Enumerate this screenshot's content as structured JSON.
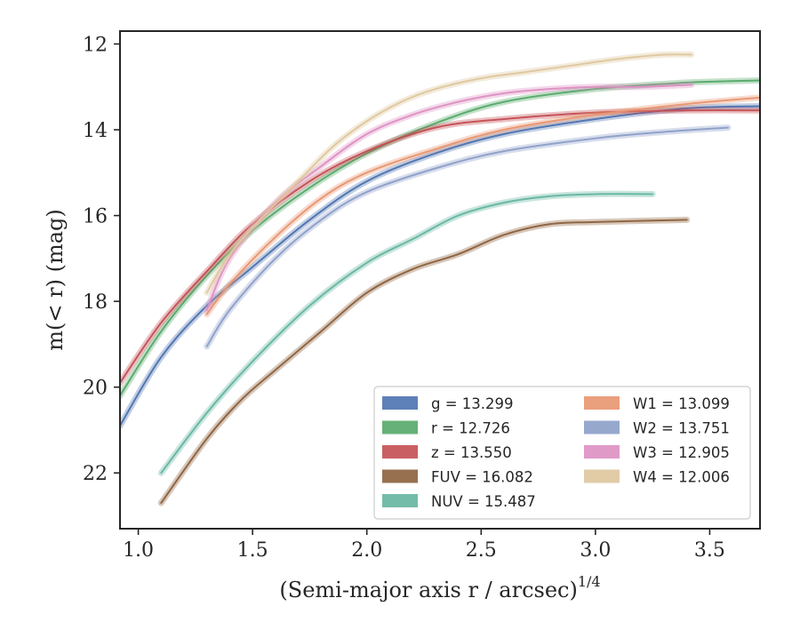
{
  "chart_data": {
    "type": "line",
    "xlabel": "(Semi-major axis r / arcsec)",
    "xlabel_exponent": "1/4",
    "ylabel": "m(< r) (mag)",
    "xlim": [
      0.92,
      3.72
    ],
    "ylim": [
      23.3,
      11.7
    ],
    "y_inverted": true,
    "x_ticks": [
      1.0,
      1.5,
      2.0,
      2.5,
      3.0,
      3.5
    ],
    "x_tick_labels": [
      "1.0",
      "1.5",
      "2.0",
      "2.5",
      "3.0",
      "3.5"
    ],
    "y_ticks": [
      12,
      14,
      16,
      18,
      20,
      22
    ],
    "y_tick_labels": [
      "12",
      "14",
      "16",
      "18",
      "20",
      "22"
    ],
    "grid": false,
    "legend_position": "lower-right",
    "series": [
      {
        "name": "g",
        "legend": "g = 13.299",
        "color": "#4c72b0",
        "x": [
          0.92,
          1.1,
          1.3,
          1.5,
          1.75,
          2.0,
          2.3,
          2.6,
          3.0,
          3.4,
          3.72
        ],
        "y": [
          20.9,
          19.3,
          18.1,
          17.2,
          16.1,
          15.2,
          14.55,
          14.1,
          13.75,
          13.5,
          13.45
        ]
      },
      {
        "name": "r",
        "legend": "r = 12.726",
        "color": "#55a868",
        "x": [
          0.92,
          1.1,
          1.3,
          1.5,
          1.75,
          2.0,
          2.3,
          2.6,
          3.0,
          3.4,
          3.72
        ],
        "y": [
          20.2,
          18.7,
          17.4,
          16.35,
          15.35,
          14.55,
          13.85,
          13.35,
          13.05,
          12.9,
          12.85
        ]
      },
      {
        "name": "z",
        "legend": "z = 13.550",
        "color": "#c44e52",
        "x": [
          0.92,
          1.1,
          1.3,
          1.5,
          1.75,
          2.0,
          2.3,
          2.6,
          3.0,
          3.4,
          3.72
        ],
        "y": [
          19.9,
          18.5,
          17.3,
          16.2,
          15.2,
          14.5,
          13.95,
          13.75,
          13.6,
          13.55,
          13.55
        ]
      },
      {
        "name": "FUV",
        "legend": "FUV = 16.082",
        "color": "#8c613c",
        "x": [
          1.1,
          1.3,
          1.45,
          1.6,
          1.8,
          2.0,
          2.2,
          2.4,
          2.6,
          2.8,
          3.0,
          3.4
        ],
        "y": [
          22.7,
          21.2,
          20.3,
          19.6,
          18.7,
          17.8,
          17.25,
          16.9,
          16.45,
          16.2,
          16.15,
          16.1
        ]
      },
      {
        "name": "NUV",
        "legend": "NUV = 15.487",
        "color": "#64b5a0",
        "x": [
          1.1,
          1.3,
          1.5,
          1.75,
          2.0,
          2.2,
          2.4,
          2.6,
          2.8,
          3.0,
          3.25
        ],
        "y": [
          22.0,
          20.6,
          19.4,
          18.1,
          17.1,
          16.55,
          16.0,
          15.7,
          15.55,
          15.5,
          15.5
        ]
      },
      {
        "name": "W1",
        "legend": "W1 = 13.099",
        "color": "#e8956f",
        "x": [
          1.3,
          1.4,
          1.6,
          1.8,
          2.0,
          2.3,
          2.6,
          3.0,
          3.4,
          3.72
        ],
        "y": [
          18.3,
          17.6,
          16.5,
          15.6,
          15.0,
          14.45,
          14.0,
          13.65,
          13.4,
          13.25
        ]
      },
      {
        "name": "W2",
        "legend": "W2 = 13.751",
        "color": "#8c9ec8",
        "x": [
          1.3,
          1.4,
          1.6,
          1.8,
          2.0,
          2.3,
          2.6,
          3.0,
          3.3,
          3.58
        ],
        "y": [
          19.05,
          18.2,
          17.0,
          16.1,
          15.45,
          14.9,
          14.5,
          14.2,
          14.05,
          13.95
        ]
      },
      {
        "name": "W3",
        "legend": "W3 = 12.905",
        "color": "#dd8fc2",
        "x": [
          1.3,
          1.4,
          1.6,
          1.8,
          2.0,
          2.2,
          2.4,
          2.6,
          2.8,
          3.0,
          3.2,
          3.42
        ],
        "y": [
          18.2,
          17.0,
          15.7,
          14.85,
          14.1,
          13.65,
          13.35,
          13.15,
          13.05,
          13.0,
          13.0,
          12.95
        ]
      },
      {
        "name": "W4",
        "legend": "W4 = 12.006",
        "color": "#dec79c",
        "x": [
          1.3,
          1.4,
          1.55,
          1.7,
          1.85,
          2.0,
          2.15,
          2.3,
          2.5,
          2.7,
          2.9,
          3.1,
          3.3,
          3.42
        ],
        "y": [
          17.8,
          16.9,
          16.0,
          15.2,
          14.4,
          13.8,
          13.35,
          13.05,
          12.8,
          12.65,
          12.5,
          12.35,
          12.25,
          12.25
        ]
      }
    ]
  }
}
